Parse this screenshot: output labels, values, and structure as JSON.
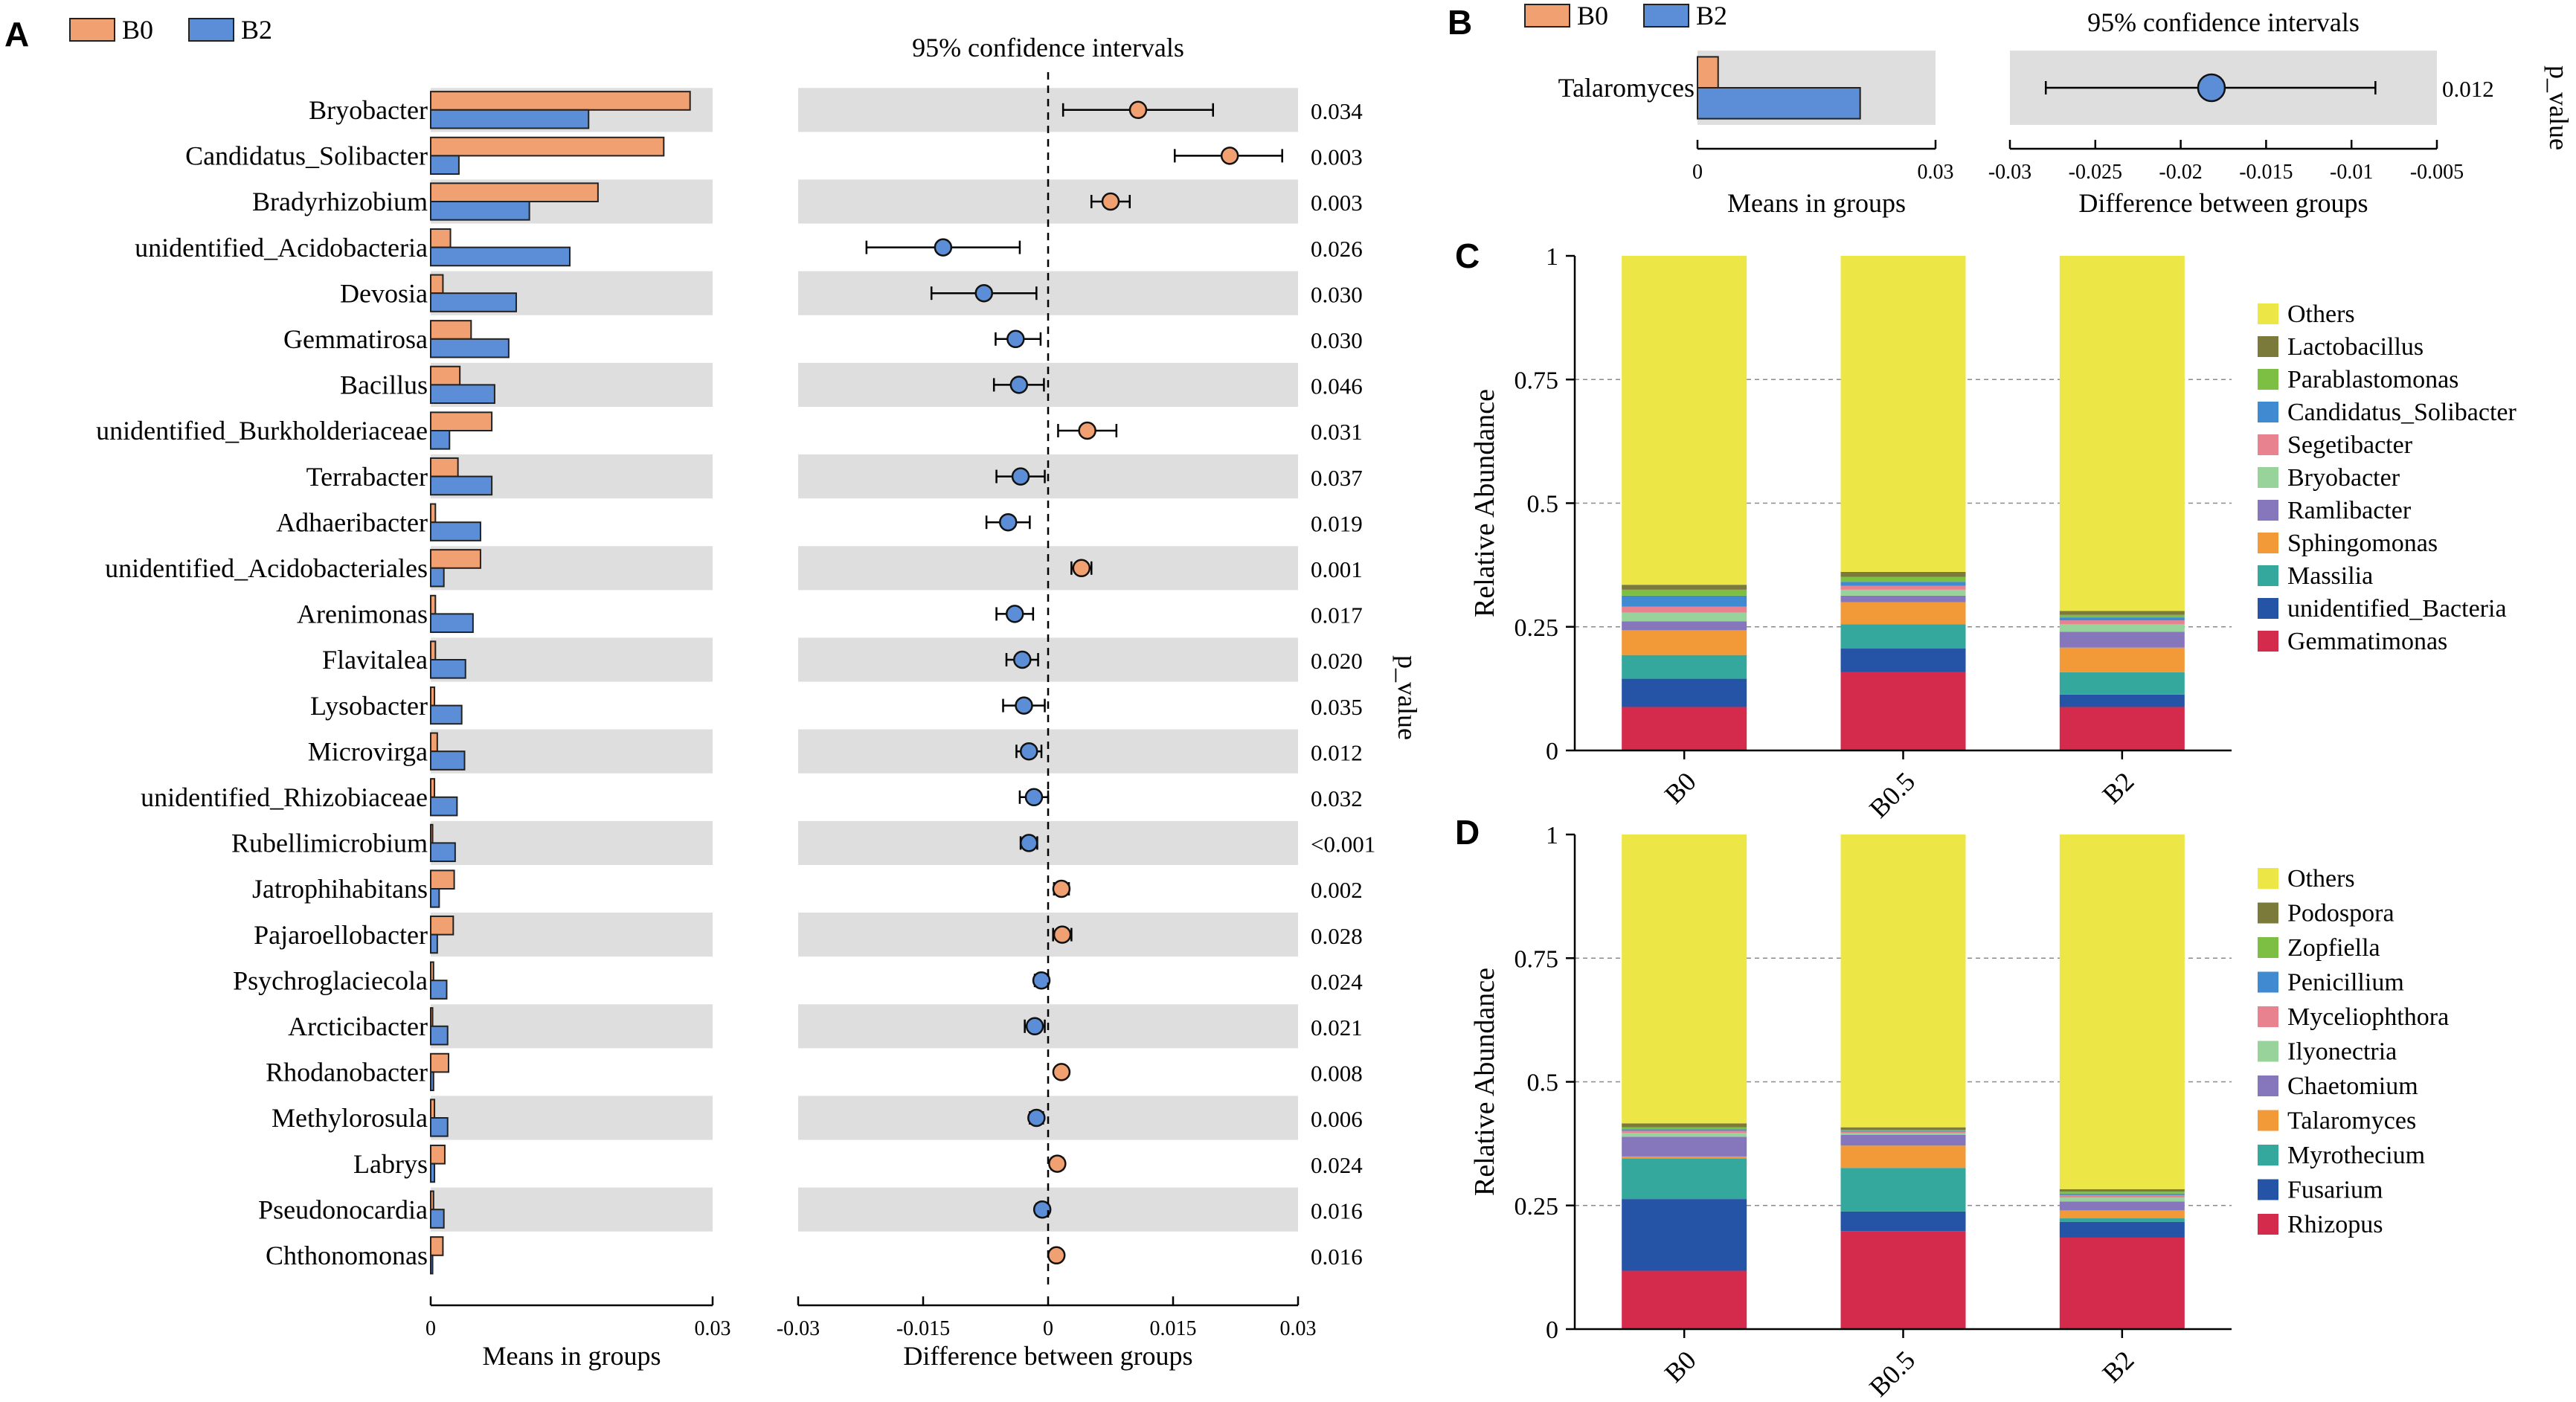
{
  "figure": {
    "panel_labels": [
      "A",
      "B",
      "C",
      "D"
    ]
  },
  "colors": {
    "b0": "#f0a071",
    "b2": "#5b8ed6",
    "band": "#dedede",
    "stroke": "#222222"
  },
  "chart_data": [
    {
      "panel": "A",
      "type": "bar",
      "title": "95% confidence intervals",
      "legend": [
        "B0",
        "B2"
      ],
      "legend_position": "top-left",
      "p_value_label": "p_value",
      "means_axis": {
        "xlabel": "Means in groups",
        "xlim": [
          0,
          0.03
        ],
        "ticks": [
          "0",
          "0.03"
        ]
      },
      "diff_axis": {
        "xlabel": "Difference between groups",
        "xlim": [
          -0.03,
          0.03
        ],
        "ticks": [
          "-0.03",
          "-0.015",
          "0",
          "0.015",
          "0.03"
        ]
      },
      "categories": [
        "Bryobacter",
        "Candidatus_Solibacter",
        "Bradyrhizobium",
        "unidentified_Acidobacteria",
        "Devosia",
        "Gemmatirosa",
        "Bacillus",
        "unidentified_Burkholderiaceae",
        "Terrabacter",
        "Adhaeribacter",
        "unidentified_Acidobacteriales",
        "Arenimonas",
        "Flavitalea",
        "Lysobacter",
        "Microvirga",
        "unidentified_Rhizobiaceae",
        "Rubellimicrobium",
        "Jatrophihabitans",
        "Pajaroellobacter",
        "Psychroglaciecola",
        "Arcticibacter",
        "Rhodanobacter",
        "Methylorosula",
        "Labrys",
        "Pseudonocardia",
        "Chthonomonas"
      ],
      "series": [
        {
          "name": "B0",
          "values": [
            0.0276,
            0.0248,
            0.0178,
            0.0021,
            0.0013,
            0.0043,
            0.0031,
            0.0065,
            0.0029,
            0.0005,
            0.0053,
            0.0005,
            0.0005,
            0.0004,
            0.0007,
            0.0004,
            0.0002,
            0.0025,
            0.0024,
            0.0003,
            0.0002,
            0.0019,
            0.0004,
            0.0015,
            0.0003,
            0.0013
          ]
        },
        {
          "name": "B2",
          "values": [
            0.0168,
            0.003,
            0.0105,
            0.0148,
            0.0091,
            0.0083,
            0.0068,
            0.002,
            0.0065,
            0.0053,
            0.0014,
            0.0045,
            0.0037,
            0.0033,
            0.0036,
            0.0028,
            0.0026,
            0.0009,
            0.0007,
            0.0017,
            0.0018,
            0.0003,
            0.0018,
            0.0004,
            0.0014,
            0.0002
          ]
        }
      ],
      "diff": [
        0.0108,
        0.0218,
        0.0075,
        -0.0126,
        -0.0077,
        -0.0039,
        -0.0035,
        0.0047,
        -0.0033,
        -0.0048,
        0.004,
        -0.004,
        -0.0031,
        -0.0029,
        -0.0023,
        -0.0017,
        -0.0023,
        0.0016,
        0.0017,
        -0.0008,
        -0.0016,
        0.0016,
        -0.0014,
        0.0011,
        -0.0007,
        0.001
      ],
      "ci_low": [
        0.0018,
        0.0152,
        0.0052,
        -0.0218,
        -0.014,
        -0.0063,
        -0.0065,
        0.0012,
        -0.0062,
        -0.0074,
        0.0028,
        -0.0062,
        -0.005,
        -0.0054,
        -0.0038,
        -0.0034,
        -0.0033,
        0.0007,
        0.0006,
        -0.0016,
        -0.0028,
        0.001,
        -0.0022,
        0.0004,
        -0.0014,
        0.0004
      ],
      "ci_high": [
        0.0198,
        0.0281,
        0.0098,
        -0.0034,
        -0.0014,
        -0.0009,
        -0.0005,
        0.0082,
        -0.0004,
        -0.0022,
        0.0052,
        -0.0018,
        -0.0012,
        -0.0004,
        -0.0008,
        0.0,
        -0.0013,
        0.0025,
        0.0028,
        0.0,
        -0.0004,
        0.0022,
        -0.0006,
        0.0018,
        0.0,
        0.0016
      ],
      "p_values": [
        "0.034",
        "0.003",
        "0.003",
        "0.026",
        "0.030",
        "0.030",
        "0.046",
        "0.031",
        "0.037",
        "0.019",
        "0.001",
        "0.017",
        "0.020",
        "0.035",
        "0.012",
        "0.032",
        "<0.001",
        "0.002",
        "0.028",
        "0.024",
        "0.021",
        "0.008",
        "0.006",
        "0.024",
        "0.016",
        "0.016"
      ]
    },
    {
      "panel": "B",
      "type": "bar",
      "title": "95% confidence intervals",
      "legend": [
        "B0",
        "B2"
      ],
      "legend_position": "top-left",
      "p_value_label": "p_value",
      "means_axis": {
        "xlabel": "Means in groups",
        "xlim": [
          0,
          0.03
        ],
        "ticks": [
          "0",
          "0.03"
        ]
      },
      "diff_axis": {
        "xlabel": "Difference between groups",
        "xlim": [
          -0.03,
          -0.005
        ],
        "ticks": [
          "-0.03",
          "-0.025",
          "-0.02",
          "-0.015",
          "-0.01",
          "-0.005"
        ]
      },
      "categories": [
        "Talaromyces"
      ],
      "series": [
        {
          "name": "B0",
          "values": [
            0.0026
          ]
        },
        {
          "name": "B2",
          "values": [
            0.0205
          ]
        }
      ],
      "diff": [
        -0.0182
      ],
      "ci_low": [
        -0.0279
      ],
      "ci_high": [
        -0.0086
      ],
      "p_values": [
        "0.012"
      ]
    },
    {
      "panel": "C",
      "type": "bar",
      "stacked": true,
      "title": "",
      "ylabel": "Relative Abundance",
      "ylim": [
        0,
        1
      ],
      "yticks": [
        "0",
        "0.25",
        "0.5",
        "0.75",
        "1"
      ],
      "categories": [
        "B0",
        "B0.5",
        "B2"
      ],
      "series": [
        {
          "name": "Gemmatimonas",
          "color": "#d42a4b",
          "values": [
            0.088,
            0.158,
            0.088
          ]
        },
        {
          "name": "unidentified_Bacteria",
          "color": "#2554a7",
          "values": [
            0.057,
            0.048,
            0.025
          ]
        },
        {
          "name": "Massilia",
          "color": "#35a89d",
          "values": [
            0.048,
            0.049,
            0.045
          ]
        },
        {
          "name": "Sphingomonas",
          "color": "#f29a38",
          "values": [
            0.05,
            0.045,
            0.05
          ]
        },
        {
          "name": "Ramlibacter",
          "color": "#8677bd",
          "values": [
            0.018,
            0.013,
            0.032
          ]
        },
        {
          "name": "Bryobacter",
          "color": "#99d39c",
          "values": [
            0.018,
            0.012,
            0.015
          ]
        },
        {
          "name": "Segetibacter",
          "color": "#e8828f",
          "values": [
            0.012,
            0.008,
            0.008
          ]
        },
        {
          "name": "Candidatus_Solibacter",
          "color": "#3f8ad1",
          "values": [
            0.022,
            0.008,
            0.006
          ]
        },
        {
          "name": "Parablastomonas",
          "color": "#7cbf43",
          "values": [
            0.012,
            0.01,
            0.005
          ]
        },
        {
          "name": "Lactobacillus",
          "color": "#7b7a3a",
          "values": [
            0.01,
            0.01,
            0.008
          ]
        },
        {
          "name": "Others",
          "color": "#ece746",
          "values": [
            0.665,
            0.639,
            0.718
          ]
        }
      ]
    },
    {
      "panel": "D",
      "type": "bar",
      "stacked": true,
      "title": "",
      "ylabel": "Relative Abundance",
      "ylim": [
        0,
        1
      ],
      "yticks": [
        "0",
        "0.25",
        "0.5",
        "0.75",
        "1"
      ],
      "categories": [
        "B0",
        "B0.5",
        "B2"
      ],
      "series": [
        {
          "name": "Rhizopus",
          "color": "#d42a4b",
          "values": [
            0.118,
            0.198,
            0.185
          ]
        },
        {
          "name": "Fusarium",
          "color": "#2554a7",
          "values": [
            0.145,
            0.04,
            0.032
          ]
        },
        {
          "name": "Myrothecium",
          "color": "#35a89d",
          "values": [
            0.082,
            0.088,
            0.007
          ]
        },
        {
          "name": "Talaromyces",
          "color": "#f29a38",
          "values": [
            0.004,
            0.045,
            0.016
          ]
        },
        {
          "name": "Chaetomium",
          "color": "#8677bd",
          "values": [
            0.04,
            0.022,
            0.018
          ]
        },
        {
          "name": "Ilyonectria",
          "color": "#99d39c",
          "values": [
            0.008,
            0.003,
            0.008
          ]
        },
        {
          "name": "Myceliophthora",
          "color": "#e8828f",
          "values": [
            0.004,
            0.003,
            0.005
          ]
        },
        {
          "name": "Penicillium",
          "color": "#3f8ad1",
          "values": [
            0.003,
            0.002,
            0.003
          ]
        },
        {
          "name": "Zopfiella",
          "color": "#7cbf43",
          "values": [
            0.004,
            0.002,
            0.004
          ]
        },
        {
          "name": "Podospora",
          "color": "#7b7a3a",
          "values": [
            0.008,
            0.005,
            0.005
          ]
        },
        {
          "name": "Others",
          "color": "#ece746",
          "values": [
            0.584,
            0.592,
            0.717
          ]
        }
      ]
    }
  ]
}
